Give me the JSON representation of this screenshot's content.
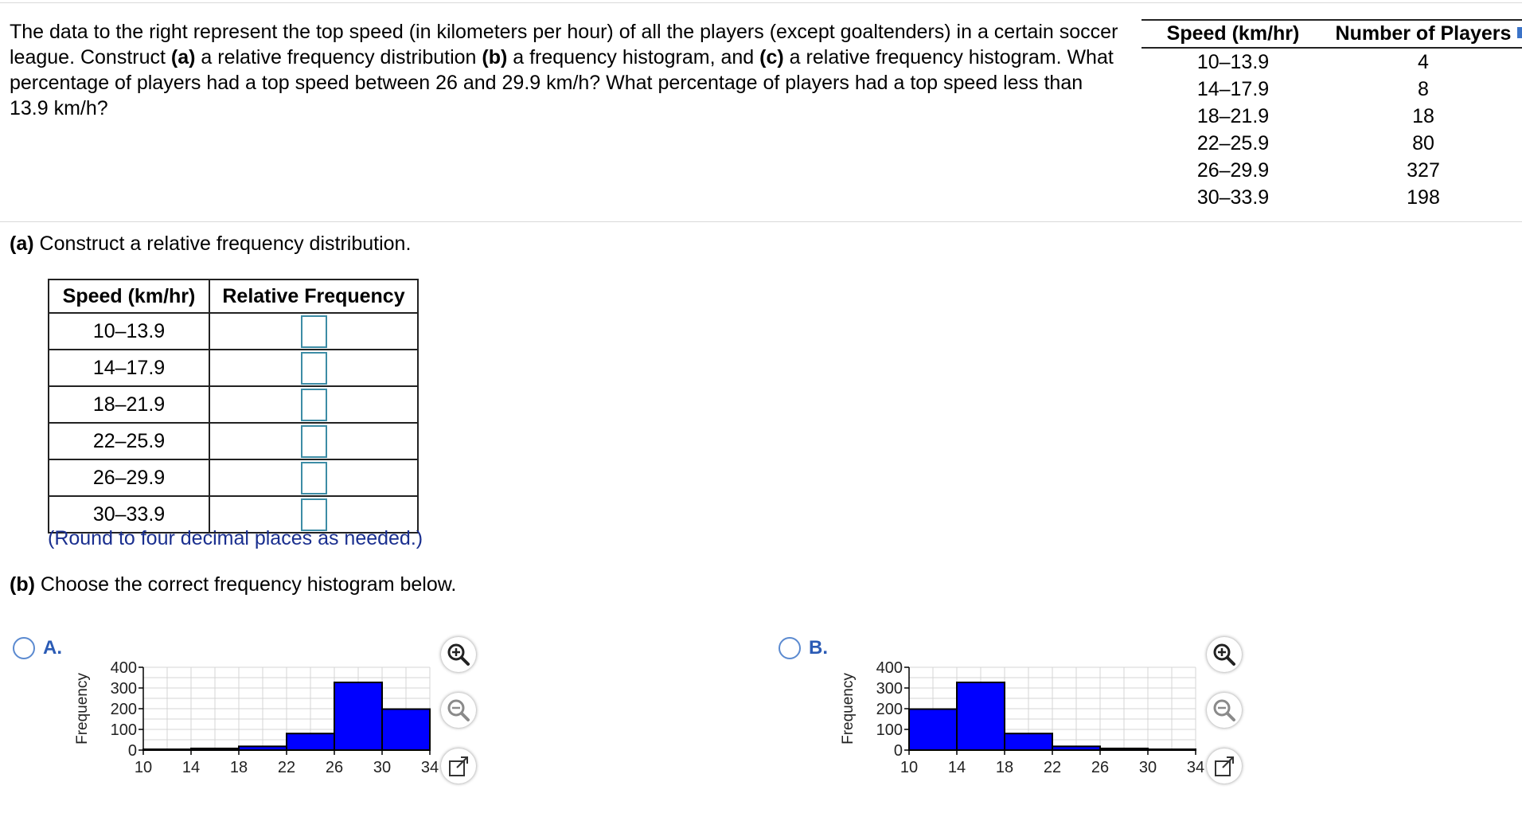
{
  "intro": {
    "t1": "The data to the right represent the top speed (in kilometers per hour) of all the players (except goaltenders) in a certain soccer league. Construct ",
    "b1": "(a)",
    "t2": " a relative frequency distribution ",
    "b2": "(b)",
    "t3": " a frequency histogram, and ",
    "b3": "(c)",
    "t4": " a relative frequency histogram. What percentage of players had a top speed between 26 and 29.9 km/h? What percentage of players had a top speed less than 13.9 km/h?"
  },
  "data_table": {
    "headers": [
      "Speed (km/hr)",
      "Number of Players"
    ],
    "rows": [
      {
        "speed": "10–13.9",
        "count": "4"
      },
      {
        "speed": "14–17.9",
        "count": "8"
      },
      {
        "speed": "18–21.9",
        "count": "18"
      },
      {
        "speed": "22–25.9",
        "count": "80"
      },
      {
        "speed": "26–29.9",
        "count": "327"
      },
      {
        "speed": "30–33.9",
        "count": "198"
      }
    ]
  },
  "part_a": {
    "label": "(a)",
    "text": " Construct a relative frequency distribution.",
    "headers": [
      "Speed (km/hr)",
      "Relative Frequency"
    ],
    "rows": [
      {
        "speed": "10–13.9",
        "value": ""
      },
      {
        "speed": "14–17.9",
        "value": ""
      },
      {
        "speed": "18–21.9",
        "value": ""
      },
      {
        "speed": "22–25.9",
        "value": ""
      },
      {
        "speed": "26–29.9",
        "value": ""
      },
      {
        "speed": "30–33.9",
        "value": ""
      }
    ],
    "note": "(Round to four decimal places as needed.)"
  },
  "part_b": {
    "label": "(b)",
    "text": " Choose the correct frequency histogram below."
  },
  "options": [
    {
      "label": "A."
    },
    {
      "label": "B."
    }
  ],
  "colors": {
    "bar": "#0000ff",
    "radio": "#5b8ad0",
    "note": "#1a2f8f",
    "option_label": "#2b5bb5"
  },
  "icons": [
    "zoom-in-icon",
    "zoom-out-icon",
    "popout-icon"
  ],
  "chart_data": [
    {
      "type": "bar",
      "bins": [
        [
          10,
          14
        ],
        [
          14,
          18
        ],
        [
          18,
          22
        ],
        [
          22,
          26
        ],
        [
          26,
          30
        ],
        [
          30,
          34
        ]
      ],
      "values": [
        4,
        8,
        18,
        80,
        327,
        198
      ],
      "ylabel": "Frequency",
      "xticks": [
        "10",
        "14",
        "18",
        "22",
        "26",
        "30",
        "34"
      ],
      "yticks": [
        "0",
        "100",
        "200",
        "300",
        "400"
      ],
      "ylim": [
        0,
        400
      ]
    },
    {
      "type": "bar",
      "bins": [
        [
          10,
          14
        ],
        [
          14,
          18
        ],
        [
          18,
          22
        ],
        [
          22,
          26
        ],
        [
          26,
          30
        ],
        [
          30,
          34
        ]
      ],
      "values": [
        198,
        327,
        80,
        18,
        8,
        4
      ],
      "ylabel": "Frequency",
      "xticks": [
        "10",
        "14",
        "18",
        "22",
        "26",
        "30",
        "34"
      ],
      "yticks": [
        "0",
        "100",
        "200",
        "300",
        "400"
      ],
      "ylim": [
        0,
        400
      ]
    }
  ]
}
